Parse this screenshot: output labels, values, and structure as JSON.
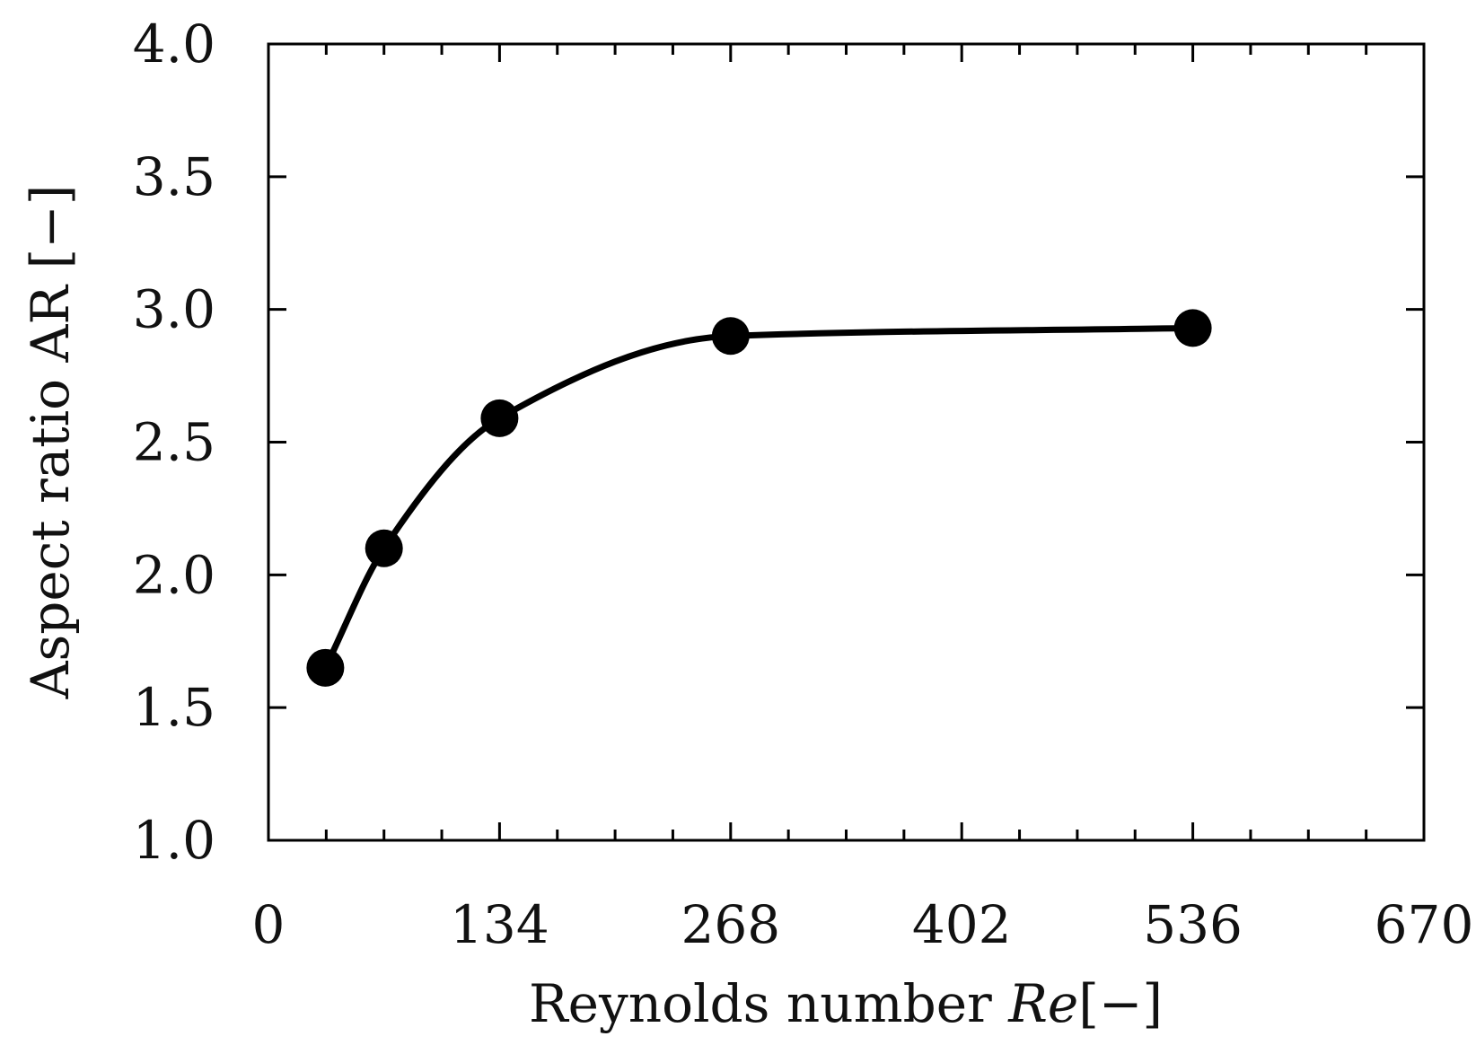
{
  "chart_data": {
    "type": "line",
    "xlabel": {
      "prefix": "Reynolds number ",
      "symbol": "Re",
      "suffix": "[−]"
    },
    "ylabel": "Aspect ratio AR [−]",
    "xlim": [
      0,
      670
    ],
    "ylim": [
      1.0,
      4.0
    ],
    "x_ticks": [
      0,
      134,
      268,
      402,
      536,
      670
    ],
    "x_tick_labels": [
      "0",
      "134",
      "268",
      "402",
      "536",
      "670"
    ],
    "x_minor_ticks": [
      33.5,
      67,
      100.5,
      167.5,
      201,
      234.5,
      301.5,
      335,
      368.5,
      435.5,
      469,
      502.5,
      569.5,
      603,
      636.5
    ],
    "y_ticks": [
      1.0,
      1.5,
      2.0,
      2.5,
      3.0,
      3.5,
      4.0
    ],
    "y_tick_labels": [
      "1.0",
      "1.5",
      "2.0",
      "2.5",
      "3.0",
      "3.5",
      "4.0"
    ],
    "grid": false,
    "series": [
      {
        "x": [
          33,
          67,
          134,
          268,
          536
        ],
        "y": [
          1.65,
          2.1,
          2.59,
          2.9,
          2.93
        ],
        "marker": "circle",
        "line": "smooth",
        "color": "#000000"
      }
    ]
  }
}
